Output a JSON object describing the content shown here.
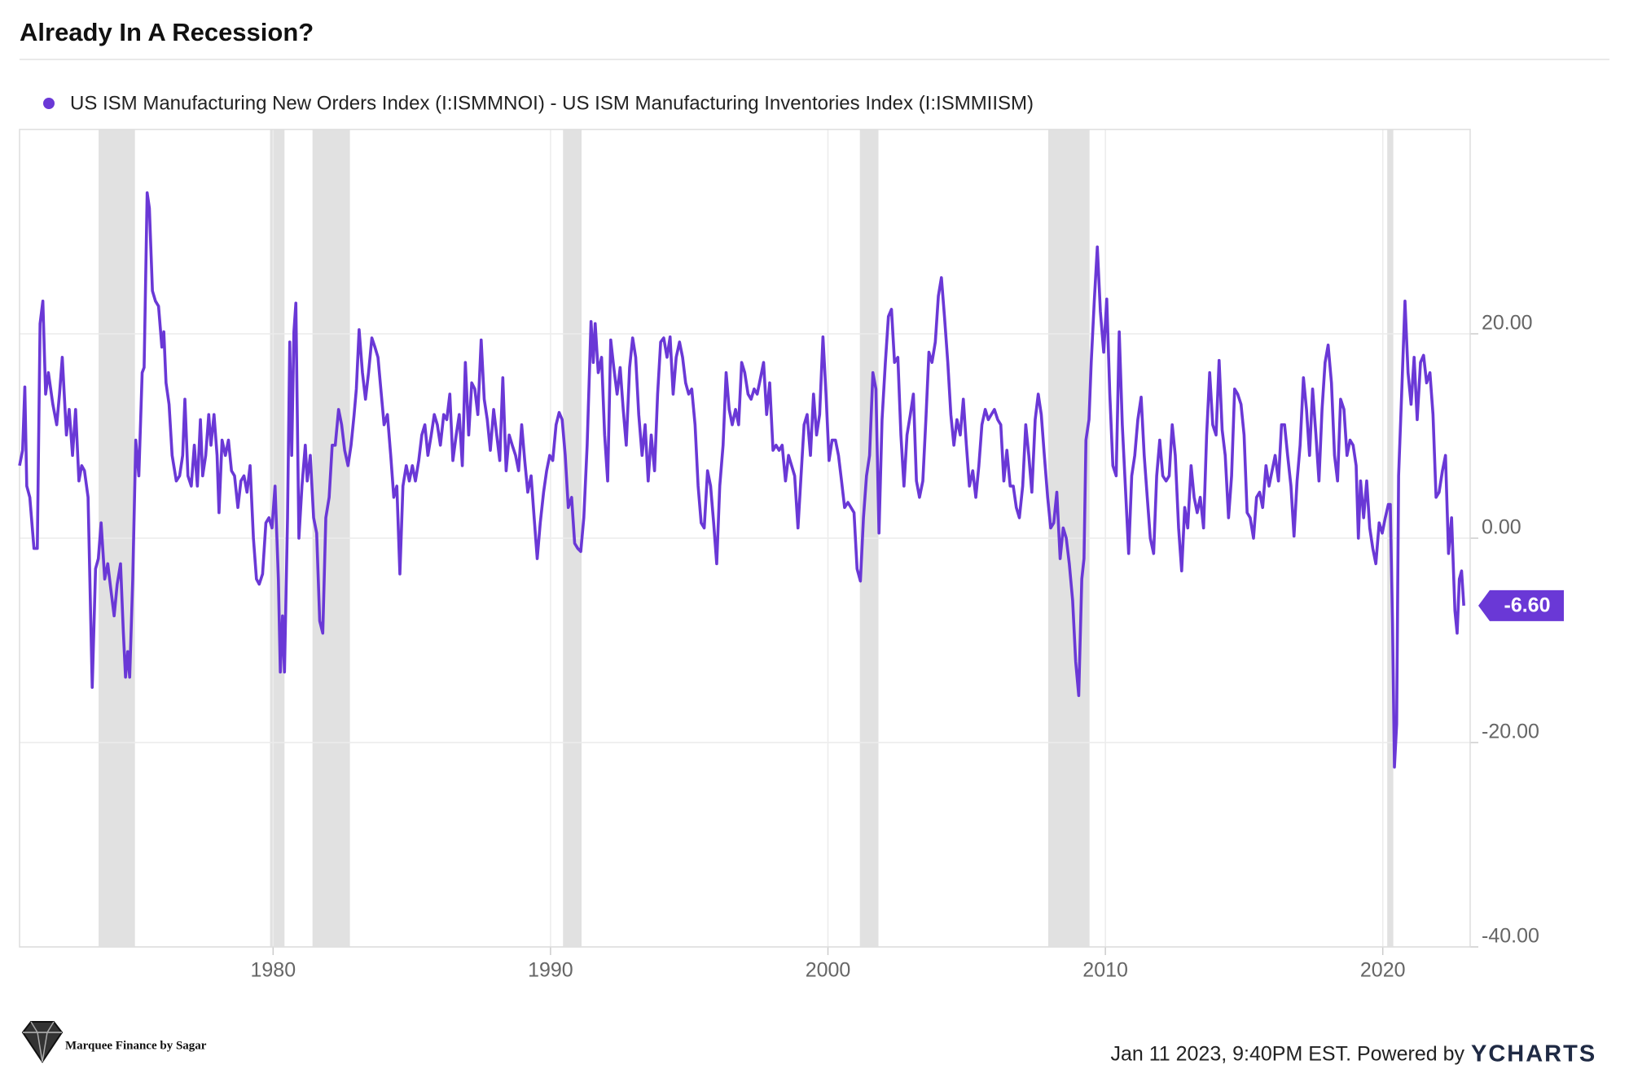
{
  "chart_data": {
    "type": "line",
    "title": "Already In A Recession?",
    "series": [
      {
        "name": "US ISM Manufacturing New Orders Index (I:ISMMNOI) - US ISM Manufacturing Inventories Index (I:ISMMIISM)",
        "color": "#6a38d6",
        "x": [
          1970.86,
          1970.97,
          1971.05,
          1971.12,
          1971.23,
          1971.38,
          1971.5,
          1971.6,
          1971.7,
          1971.8,
          1971.9,
          1972.06,
          1972.2,
          1972.3,
          1972.4,
          1972.55,
          1972.65,
          1972.77,
          1972.88,
          1973.0,
          1973.1,
          1973.2,
          1973.33,
          1973.48,
          1973.6,
          1973.7,
          1973.8,
          1973.93,
          1974.04,
          1974.15,
          1974.27,
          1974.38,
          1974.5,
          1974.6,
          1974.68,
          1974.76,
          1974.83,
          1974.94,
          1975.05,
          1975.16,
          1975.28,
          1975.35,
          1975.46,
          1975.54,
          1975.65,
          1975.76,
          1975.87,
          1975.99,
          1976.06,
          1976.14,
          1976.25,
          1976.36,
          1976.51,
          1976.63,
          1976.74,
          1976.82,
          1976.93,
          1977.05,
          1977.16,
          1977.27,
          1977.38,
          1977.46,
          1977.57,
          1977.68,
          1977.76,
          1977.87,
          1977.98,
          1978.05,
          1978.16,
          1978.28,
          1978.39,
          1978.5,
          1978.61,
          1978.73,
          1978.84,
          1978.95,
          1979.06,
          1979.17,
          1979.29,
          1979.4,
          1979.5,
          1979.62,
          1979.74,
          1979.85,
          1979.96,
          1980.07,
          1980.19,
          1980.26,
          1980.34,
          1980.41,
          1980.52,
          1980.6,
          1980.67,
          1980.75,
          1980.82,
          1980.93,
          1981.04,
          1981.16,
          1981.23,
          1981.34,
          1981.46,
          1981.57,
          1981.68,
          1981.79,
          1981.9,
          1982.02,
          1982.13,
          1982.24,
          1982.36,
          1982.47,
          1982.58,
          1982.7,
          1982.81,
          1982.92,
          1983.0,
          1983.1,
          1983.22,
          1983.33,
          1983.44,
          1983.56,
          1983.67,
          1983.78,
          1983.9,
          1984.0,
          1984.12,
          1984.24,
          1984.35,
          1984.46,
          1984.57,
          1984.68,
          1984.8,
          1984.91,
          1985.02,
          1985.13,
          1985.25,
          1985.36,
          1985.47,
          1985.58,
          1985.7,
          1985.81,
          1985.92,
          1986.03,
          1986.15,
          1986.26,
          1986.37,
          1986.48,
          1986.6,
          1986.71,
          1986.82,
          1986.93,
          1987.05,
          1987.16,
          1987.27,
          1987.38,
          1987.5,
          1987.61,
          1987.72,
          1987.83,
          1987.95,
          1988.06,
          1988.17,
          1988.28,
          1988.4,
          1988.51,
          1988.62,
          1988.74,
          1988.85,
          1988.96,
          1989.07,
          1989.18,
          1989.3,
          1989.41,
          1989.52,
          1989.63,
          1989.75,
          1989.86,
          1989.97,
          1990.08,
          1990.2,
          1990.31,
          1990.42,
          1990.53,
          1990.64,
          1990.76,
          1990.87,
          1990.98,
          1991.09,
          1991.2,
          1991.32,
          1991.46,
          1991.54,
          1991.61,
          1991.72,
          1991.84,
          1991.95,
          1992.06,
          1992.17,
          1992.28,
          1992.4,
          1992.51,
          1992.62,
          1992.73,
          1992.85,
          1992.96,
          1993.07,
          1993.18,
          1993.3,
          1993.41,
          1993.52,
          1993.63,
          1993.75,
          1993.86,
          1993.97,
          1994.08,
          1994.2,
          1994.31,
          1994.42,
          1994.53,
          1994.65,
          1994.76,
          1994.87,
          1994.98,
          1995.09,
          1995.21,
          1995.32,
          1995.43,
          1995.54,
          1995.66,
          1995.77,
          1995.88,
          1995.99,
          1996.1,
          1996.22,
          1996.33,
          1996.44,
          1996.55,
          1996.67,
          1996.78,
          1996.89,
          1997.0,
          1997.12,
          1997.23,
          1997.34,
          1997.45,
          1997.57,
          1997.68,
          1997.79,
          1997.9,
          1998.02,
          1998.13,
          1998.24,
          1998.35,
          1998.47,
          1998.58,
          1998.69,
          1998.8,
          1998.92,
          1999.03,
          1999.14,
          1999.25,
          1999.37,
          1999.48,
          1999.59,
          1999.7,
          1999.82,
          1999.93,
          2000.04,
          2000.15,
          2000.27,
          2000.38,
          2000.49,
          2000.6,
          2000.72,
          2000.83,
          2000.94,
          2001.05,
          2001.17,
          2001.28,
          2001.39,
          2001.5,
          2001.62,
          2001.73,
          2001.84,
          2001.95,
          2002.07,
          2002.18,
          2002.29,
          2002.4,
          2002.52,
          2002.63,
          2002.74,
          2002.85,
          2002.97,
          2003.08,
          2003.19,
          2003.3,
          2003.42,
          2003.53,
          2003.64,
          2003.75,
          2003.87,
          2003.98,
          2004.09,
          2004.2,
          2004.32,
          2004.43,
          2004.54,
          2004.65,
          2004.77,
          2004.88,
          2004.99,
          2005.1,
          2005.22,
          2005.33,
          2005.44,
          2005.55,
          2005.67,
          2005.78,
          2005.89,
          2006.0,
          2006.12,
          2006.23,
          2006.34,
          2006.45,
          2006.57,
          2006.68,
          2006.79,
          2006.9,
          2007.02,
          2007.13,
          2007.24,
          2007.35,
          2007.47,
          2007.58,
          2007.69,
          2007.8,
          2007.92,
          2008.03,
          2008.14,
          2008.25,
          2008.37,
          2008.48,
          2008.59,
          2008.7,
          2008.82,
          2008.93,
          2009.04,
          2009.15,
          2009.23,
          2009.3,
          2009.41,
          2009.49,
          2009.6,
          2009.71,
          2009.82,
          2009.94,
          2010.05,
          2010.16,
          2010.27,
          2010.39,
          2010.5,
          2010.61,
          2010.72,
          2010.84,
          2010.95,
          2011.06,
          2011.17,
          2011.29,
          2011.4,
          2011.51,
          2011.62,
          2011.74,
          2011.85,
          2011.96,
          2012.07,
          2012.19,
          2012.3,
          2012.41,
          2012.52,
          2012.64,
          2012.75,
          2012.86,
          2012.97,
          2013.09,
          2013.2,
          2013.31,
          2013.42,
          2013.54,
          2013.65,
          2013.76,
          2013.87,
          2013.99,
          2014.1,
          2014.21,
          2014.32,
          2014.44,
          2014.55,
          2014.66,
          2014.77,
          2014.89,
          2015.0,
          2015.11,
          2015.22,
          2015.34,
          2015.45,
          2015.56,
          2015.67,
          2015.79,
          2015.9,
          2016.01,
          2016.12,
          2016.24,
          2016.35,
          2016.46,
          2016.57,
          2016.69,
          2016.8,
          2016.91,
          2017.02,
          2017.14,
          2017.25,
          2017.36,
          2017.47,
          2017.59,
          2017.7,
          2017.81,
          2017.92,
          2018.03,
          2018.15,
          2018.26,
          2018.37,
          2018.48,
          2018.6,
          2018.71,
          2018.82,
          2018.93,
          2019.04,
          2019.12,
          2019.2,
          2019.31,
          2019.42,
          2019.53,
          2019.64,
          2019.75,
          2019.87,
          2019.98,
          2020.09,
          2020.2,
          2020.27,
          2020.35,
          2020.42,
          2020.5,
          2020.57,
          2020.68,
          2020.8,
          2020.91,
          2021.02,
          2021.13,
          2021.24,
          2021.36,
          2021.47,
          2021.58,
          2021.7,
          2021.81,
          2021.92,
          2022.03,
          2022.15,
          2022.26,
          2022.37,
          2022.48,
          2022.6,
          2022.68,
          2022.76,
          2022.84,
          2022.92
        ],
        "values": [
          7.1,
          8.6,
          14.8,
          5.1,
          4.0,
          -1.0,
          -1.0,
          21,
          23.2,
          14.1,
          16.2,
          13.1,
          11.1,
          14.1,
          17.7,
          10.1,
          12.6,
          8.1,
          12.6,
          5.6,
          7.1,
          6.6,
          4.0,
          -14.6,
          -3,
          -2,
          1.5,
          -4,
          -2.5,
          -5,
          -7.6,
          -4.5,
          -2.5,
          -9.1,
          -13.6,
          -11.1,
          -13.6,
          -4,
          9.6,
          6.1,
          16.2,
          16.7,
          33.8,
          32.3,
          24.2,
          23.2,
          22.7,
          18.7,
          20.2,
          15.2,
          13.1,
          8.1,
          5.6,
          6.1,
          8.1,
          13.6,
          6.1,
          5.1,
          9.1,
          5.1,
          11.6,
          6.1,
          8.1,
          12.1,
          9.1,
          12.1,
          8.1,
          2.5,
          9.6,
          8.1,
          9.6,
          6.6,
          6.1,
          3.0,
          5.6,
          6.1,
          4.5,
          7.1,
          0,
          -4,
          -4.5,
          -3.5,
          1.5,
          2,
          1,
          5.1,
          -4,
          -13.1,
          -7.6,
          -13.1,
          2,
          19.2,
          8.1,
          20.2,
          23,
          0,
          5.1,
          9.1,
          5.6,
          8.1,
          2,
          0.5,
          -8.1,
          -9.3,
          2,
          4,
          9.1,
          9.1,
          12.6,
          11.1,
          8.6,
          7.1,
          9.1,
          12.1,
          14.6,
          20.4,
          16.2,
          13.6,
          16.2,
          19.6,
          18.7,
          17.7,
          14.1,
          11.1,
          12.1,
          8.1,
          4,
          5.1,
          -3.5,
          5.1,
          7.1,
          5.6,
          7.1,
          5.6,
          7.6,
          10.1,
          11.1,
          8.1,
          10.1,
          12.1,
          11.1,
          9.1,
          12.1,
          11.6,
          14.1,
          7.6,
          10.1,
          12.1,
          7.1,
          17.2,
          10.1,
          15.2,
          14.6,
          12.1,
          19.4,
          13.6,
          11.6,
          8.6,
          12.6,
          10.1,
          7.6,
          15.7,
          6.6,
          10.1,
          9.1,
          8.1,
          6.6,
          11.1,
          7.6,
          4.5,
          6.1,
          2,
          -2,
          1.5,
          4.5,
          6.6,
          8.1,
          7.6,
          11.1,
          12.3,
          11.6,
          8.1,
          3,
          4,
          -0.5,
          -1,
          -1.3,
          2,
          9.1,
          21.2,
          17.2,
          21,
          16.2,
          17.7,
          10.1,
          5.6,
          19.4,
          16.7,
          14.1,
          16.7,
          12.6,
          9.1,
          16.7,
          19.6,
          17.7,
          12.1,
          8.1,
          11.1,
          5.6,
          10.1,
          6.6,
          14.1,
          19.2,
          19.6,
          17.7,
          19.7,
          14.1,
          17.7,
          19.2,
          17.7,
          15.2,
          14.1,
          14.6,
          11.1,
          5.1,
          1.5,
          1,
          6.6,
          5.1,
          1.5,
          -2.5,
          5.1,
          9.1,
          16.2,
          12.6,
          11.1,
          12.6,
          11.1,
          17.2,
          16.2,
          14.1,
          13.6,
          14.6,
          14.1,
          15.7,
          17.2,
          12.1,
          15.2,
          8.6,
          9.1,
          8.6,
          9.1,
          5.6,
          8.1,
          7.1,
          6.1,
          1,
          6.1,
          11.1,
          12.1,
          8.1,
          14.1,
          10.1,
          12.1,
          19.7,
          14.1,
          7.6,
          9.6,
          9.6,
          8.1,
          5.6,
          3,
          3.5,
          3,
          2.5,
          -3,
          -4.2,
          2,
          6.1,
          8.1,
          16.2,
          14.6,
          0.5,
          11.6,
          17.2,
          21.7,
          22.4,
          17.2,
          17.7,
          10.1,
          5.1,
          10.1,
          12.1,
          14.1,
          5.6,
          4,
          5.6,
          11.6,
          18.2,
          17.2,
          19.2,
          23.7,
          25.5,
          21.7,
          17.2,
          12.1,
          9.1,
          11.6,
          10.1,
          13.6,
          9.1,
          5.1,
          6.6,
          4,
          7.1,
          11.1,
          12.6,
          11.6,
          12.1,
          12.6,
          11.6,
          11.1,
          5.6,
          8.6,
          5.1,
          5.1,
          3,
          2,
          5.1,
          11.1,
          8.1,
          4.5,
          11.6,
          14.1,
          12.1,
          8.1,
          4,
          1,
          1.5,
          4.5,
          -2,
          1,
          0,
          -2.5,
          -6.1,
          -12.1,
          -15.4,
          -4,
          -2,
          9.6,
          11.6,
          17.2,
          23.2,
          28.5,
          22.2,
          18.2,
          23.4,
          14.1,
          7.1,
          6.1,
          20.2,
          11.1,
          5.1,
          -1.5,
          6.1,
          8.1,
          11.6,
          13.8,
          8.1,
          4,
          0,
          -1.5,
          6.1,
          9.6,
          6.1,
          5.6,
          6.1,
          11.1,
          8.1,
          1,
          -3.2,
          3,
          1,
          7.1,
          4,
          2.5,
          4,
          1,
          10.1,
          16.2,
          11.1,
          10.1,
          17.4,
          10.6,
          8.1,
          2,
          6.1,
          14.6,
          14.1,
          13.1,
          10.1,
          2.5,
          2,
          0,
          4,
          4.5,
          3,
          7.1,
          5.1,
          6.6,
          8.1,
          5.6,
          11.1,
          11.1,
          8.1,
          5.1,
          0.2,
          5.6,
          9.1,
          15.7,
          12.6,
          8.1,
          14.6,
          10.1,
          5.6,
          12.6,
          17.2,
          18.9,
          15.2,
          8.1,
          5.6,
          13.6,
          12.6,
          8.1,
          9.6,
          9.1,
          7.1,
          0,
          5.6,
          2,
          5.6,
          1,
          -1,
          -2.5,
          1.5,
          0.5,
          2,
          3.3,
          3.3,
          -8.1,
          -22.4,
          -18.2,
          6.1,
          14.1,
          23.2,
          16.2,
          13.1,
          17.7,
          11.6,
          17.2,
          17.9,
          15.2,
          16.2,
          12.1,
          4,
          4.5,
          6.6,
          8.1,
          -1.5,
          2,
          -7.1,
          -9.3,
          -4,
          -3.2,
          -6.6
        ]
      }
    ],
    "last_value": {
      "value": -6.6,
      "label": "-6.60"
    },
    "shaded_periods": [
      [
        1973.71,
        1975.02
      ],
      [
        1979.89,
        1980.41
      ],
      [
        1981.42,
        1982.77
      ],
      [
        1990.45,
        1991.12
      ],
      [
        2001.15,
        2001.82
      ],
      [
        2007.94,
        2009.43
      ],
      [
        2020.16,
        2020.38
      ]
    ],
    "shade_color": "#e1e1e1",
    "xlim": [
      1970.86,
      2023.15
    ],
    "xticks": [
      1980,
      1990,
      2000,
      2010,
      2020
    ],
    "ylim": [
      -40,
      40
    ],
    "yticks": [
      {
        "value": -40,
        "label": "-40.00"
      },
      {
        "value": -20,
        "label": "-20.00"
      },
      {
        "value": 0,
        "label": "0.00"
      },
      {
        "value": 20,
        "label": "20.00"
      }
    ],
    "grid": true,
    "source_note": "Jan 11 2023, 9:40PM EST. Powered by",
    "brand": "YCHARTS",
    "watermark": "Marquee Finance by Sagar"
  }
}
